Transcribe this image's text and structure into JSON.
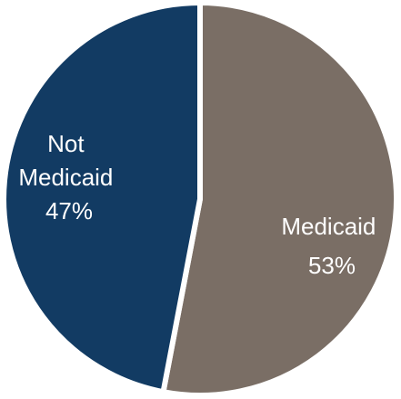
{
  "colors": {
    "medicaid": "#7a6e65",
    "not_medicaid": "#123b63",
    "separator": "#ffffff"
  },
  "chart_data": {
    "type": "pie",
    "title": "",
    "slices": [
      {
        "key": "medicaid",
        "label_lines": [
          "Medicaid"
        ],
        "percent_label": "53%",
        "value": 53,
        "color": "#7a6e65"
      },
      {
        "key": "not_medicaid",
        "label_lines": [
          "Not",
          "Medicaid"
        ],
        "percent_label": "47%",
        "value": 47,
        "color": "#123b63"
      }
    ],
    "start_angle_deg": 0,
    "direction": "clockwise",
    "legend": "none"
  }
}
